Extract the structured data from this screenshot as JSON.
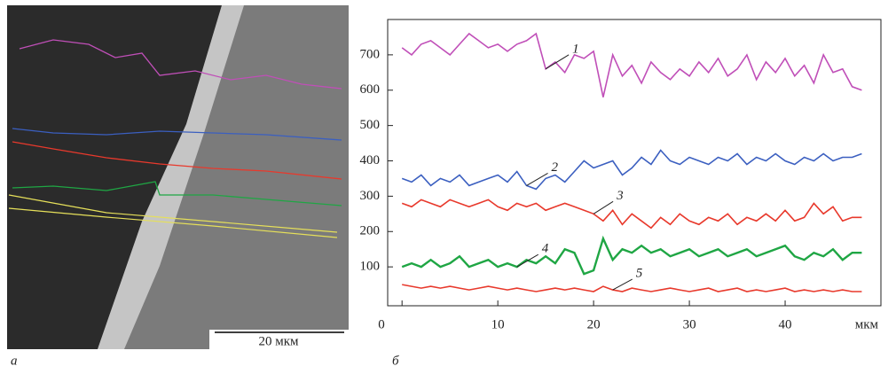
{
  "image": {
    "scale_bar": "20 мкм",
    "panel_label": "а"
  },
  "chart_data": {
    "type": "line",
    "panel_label": "б",
    "x_label": "мкм",
    "x": [
      0,
      1,
      2,
      3,
      4,
      5,
      6,
      7,
      8,
      9,
      10,
      11,
      12,
      13,
      14,
      15,
      16,
      17,
      18,
      19,
      20,
      21,
      22,
      23,
      24,
      25,
      26,
      27,
      28,
      29,
      30,
      31,
      32,
      33,
      34,
      35,
      36,
      37,
      38,
      39,
      40,
      41,
      42,
      43,
      44,
      45,
      46,
      47,
      48
    ],
    "xlim": [
      -1.5,
      50
    ],
    "xticks": [
      0,
      10,
      20,
      30,
      40
    ],
    "ylim": [
      -10,
      800
    ],
    "yticks": [
      100,
      200,
      300,
      400,
      500,
      600,
      700
    ],
    "series": [
      {
        "name": "1",
        "color": "#c04fb8",
        "values": [
          720,
          700,
          730,
          740,
          720,
          700,
          730,
          760,
          740,
          720,
          730,
          710,
          730,
          740,
          760,
          660,
          680,
          650,
          700,
          690,
          710,
          580,
          700,
          640,
          670,
          620,
          680,
          650,
          630,
          660,
          640,
          680,
          650,
          690,
          640,
          660,
          700,
          630,
          680,
          650,
          690,
          640,
          670,
          620,
          700,
          650,
          660,
          610,
          600
        ]
      },
      {
        "name": "2",
        "color": "#3b5fc0",
        "values": [
          350,
          340,
          360,
          330,
          350,
          340,
          360,
          330,
          340,
          350,
          360,
          340,
          370,
          330,
          320,
          350,
          360,
          340,
          370,
          400,
          380,
          390,
          400,
          360,
          380,
          410,
          390,
          430,
          400,
          390,
          410,
          400,
          390,
          410,
          400,
          420,
          390,
          410,
          400,
          420,
          400,
          390,
          410,
          400,
          420,
          400,
          410,
          410,
          420
        ]
      },
      {
        "name": "3",
        "color": "#e8392c",
        "values": [
          280,
          270,
          290,
          280,
          270,
          290,
          280,
          270,
          280,
          290,
          270,
          260,
          280,
          270,
          280,
          260,
          270,
          280,
          270,
          260,
          250,
          230,
          260,
          220,
          250,
          230,
          210,
          240,
          220,
          250,
          230,
          220,
          240,
          230,
          250,
          220,
          240,
          230,
          250,
          230,
          260,
          230,
          240,
          280,
          250,
          270,
          230,
          240,
          240
        ]
      },
      {
        "name": "4",
        "color": "#1fa644",
        "values": [
          100,
          110,
          100,
          120,
          100,
          110,
          130,
          100,
          110,
          120,
          100,
          110,
          100,
          120,
          110,
          130,
          110,
          150,
          140,
          80,
          90,
          180,
          120,
          150,
          140,
          160,
          140,
          150,
          130,
          140,
          150,
          130,
          140,
          150,
          130,
          140,
          150,
          130,
          140,
          150,
          160,
          130,
          120,
          140,
          130,
          150,
          120,
          140,
          140
        ]
      },
      {
        "name": "5",
        "color": "#e8392c",
        "values": [
          50,
          45,
          40,
          45,
          40,
          45,
          40,
          35,
          40,
          45,
          40,
          35,
          40,
          35,
          30,
          35,
          40,
          35,
          40,
          35,
          30,
          45,
          35,
          30,
          40,
          35,
          30,
          35,
          40,
          35,
          30,
          35,
          40,
          30,
          35,
          40,
          30,
          35,
          30,
          35,
          40,
          30,
          35,
          30,
          35,
          30,
          35,
          30,
          30
        ]
      }
    ]
  }
}
